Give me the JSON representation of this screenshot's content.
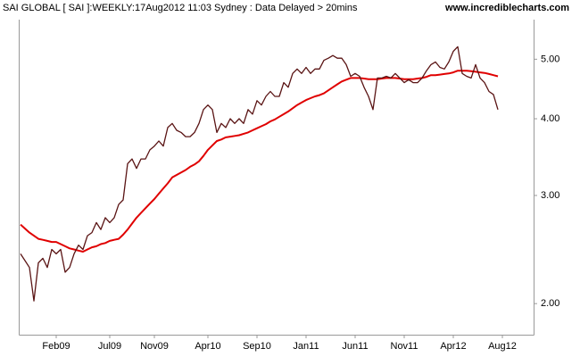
{
  "chart_data": {
    "type": "line",
    "title": "SAI GLOBAL [ SAI ]:WEEKLY:17Aug2012 11:03 Sydney : Data Delayed > 20mins",
    "source": "www.incrediblecharts.com",
    "log_scale": true,
    "grid": false,
    "ylim": [
      1.78,
      5.8
    ],
    "yticks": [
      {
        "value": 2,
        "label": "2.00"
      },
      {
        "value": 3,
        "label": "3.00"
      },
      {
        "value": 4,
        "label": "4.00"
      },
      {
        "value": 5,
        "label": "5.00"
      }
    ],
    "categories": [
      null,
      null,
      null,
      null,
      null,
      null,
      null,
      null,
      "Feb09",
      null,
      null,
      null,
      null,
      null,
      null,
      null,
      null,
      null,
      null,
      null,
      "Jul09",
      null,
      null,
      null,
      null,
      null,
      null,
      null,
      null,
      null,
      "Nov09",
      null,
      null,
      null,
      null,
      null,
      null,
      null,
      null,
      null,
      null,
      null,
      "Apr10",
      null,
      null,
      null,
      null,
      null,
      null,
      null,
      null,
      null,
      null,
      "Sep10",
      null,
      null,
      null,
      null,
      null,
      null,
      null,
      null,
      null,
      null,
      "Jan11",
      null,
      null,
      null,
      null,
      null,
      null,
      null,
      null,
      null,
      null,
      "Jun11",
      null,
      null,
      null,
      null,
      null,
      null,
      null,
      null,
      null,
      null,
      "Nov11",
      null,
      null,
      null,
      null,
      null,
      null,
      null,
      null,
      null,
      null,
      "Apr12",
      null,
      null,
      null,
      null,
      null,
      null,
      null,
      null,
      null,
      null,
      "Aug12"
    ],
    "series": [
      {
        "color": "#5a1414",
        "values": [
          2.41,
          2.35,
          2.29,
          2.02,
          2.33,
          2.37,
          2.29,
          2.45,
          2.41,
          2.45,
          2.25,
          2.29,
          2.41,
          2.49,
          2.45,
          2.58,
          2.61,
          2.71,
          2.64,
          2.76,
          2.71,
          2.76,
          2.9,
          2.95,
          3.38,
          3.44,
          3.32,
          3.44,
          3.44,
          3.56,
          3.61,
          3.68,
          3.61,
          3.87,
          3.93,
          3.83,
          3.8,
          3.74,
          3.74,
          3.8,
          3.93,
          4.14,
          4.21,
          4.14,
          3.8,
          3.93,
          3.87,
          4.0,
          3.93,
          4.0,
          3.93,
          4.14,
          4.07,
          4.28,
          4.21,
          4.35,
          4.43,
          4.35,
          4.35,
          4.58,
          4.5,
          4.74,
          4.82,
          4.74,
          4.85,
          4.74,
          4.82,
          4.82,
          4.98,
          5.02,
          5.07,
          5.02,
          5.02,
          4.9,
          4.69,
          4.74,
          4.69,
          4.5,
          4.35,
          4.14,
          4.66,
          4.66,
          4.69,
          4.66,
          4.74,
          4.66,
          4.58,
          4.63,
          4.58,
          4.58,
          4.66,
          4.79,
          4.9,
          4.95,
          4.85,
          4.82,
          4.95,
          5.15,
          5.24,
          4.74,
          4.69,
          4.66,
          4.9,
          4.66,
          4.58,
          4.43,
          4.38,
          4.14,
          null
        ]
      },
      {
        "color": "#e00000",
        "values": [
          2.69,
          2.65,
          2.61,
          2.58,
          2.55,
          2.54,
          2.53,
          2.52,
          2.52,
          2.5,
          2.48,
          2.46,
          2.45,
          2.44,
          2.43,
          2.45,
          2.47,
          2.48,
          2.5,
          2.51,
          2.53,
          2.54,
          2.55,
          2.59,
          2.64,
          2.7,
          2.76,
          2.81,
          2.86,
          2.91,
          2.96,
          3.02,
          3.08,
          3.14,
          3.21,
          3.24,
          3.27,
          3.3,
          3.34,
          3.37,
          3.41,
          3.48,
          3.56,
          3.62,
          3.68,
          3.7,
          3.73,
          3.74,
          3.75,
          3.76,
          3.78,
          3.8,
          3.83,
          3.86,
          3.89,
          3.92,
          3.96,
          3.99,
          4.03,
          4.07,
          4.11,
          4.16,
          4.21,
          4.25,
          4.29,
          4.32,
          4.35,
          4.37,
          4.4,
          4.45,
          4.5,
          4.55,
          4.6,
          4.63,
          4.66,
          4.66,
          4.66,
          4.65,
          4.64,
          4.64,
          4.64,
          4.65,
          4.66,
          4.66,
          4.66,
          4.65,
          4.64,
          4.64,
          4.64,
          4.65,
          4.66,
          4.68,
          4.71,
          4.71,
          4.72,
          4.73,
          4.74,
          4.76,
          4.79,
          4.79,
          4.79,
          4.78,
          4.77,
          4.76,
          4.75,
          4.73,
          4.71,
          4.69,
          null
        ]
      }
    ]
  }
}
